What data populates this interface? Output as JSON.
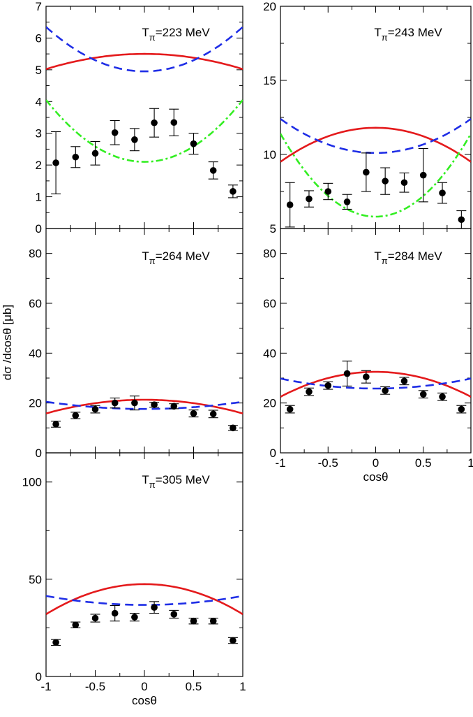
{
  "chart_data": [
    {
      "type": "line",
      "title": "223",
      "title_sub": "π",
      "title_unit": "MeV",
      "xlabel": "",
      "ylabel": "",
      "xlim": [
        -1,
        1
      ],
      "ylim": [
        0,
        7
      ],
      "yticks": [
        0,
        1,
        2,
        3,
        4,
        5,
        6,
        7
      ],
      "xticks": [],
      "points": {
        "x": [
          -0.9,
          -0.7,
          -0.5,
          -0.3,
          -0.1,
          0.1,
          0.3,
          0.5,
          0.7,
          0.9
        ],
        "y": [
          2.07,
          2.25,
          2.37,
          3.02,
          2.8,
          3.33,
          3.34,
          2.67,
          1.83,
          1.17
        ],
        "err": [
          0.98,
          0.33,
          0.37,
          0.38,
          0.35,
          0.45,
          0.42,
          0.33,
          0.27,
          0.2
        ]
      },
      "curves": [
        {
          "name": "solid",
          "color": "#e41a1c",
          "dash": "",
          "coef": [
            5.5,
            -0.48
          ]
        },
        {
          "name": "dashed",
          "color": "#1f2ee6",
          "dash": "12,7",
          "coef": [
            4.95,
            1.4
          ]
        },
        {
          "name": "dash-dot",
          "color": "#33ee22",
          "dash": "10,4,3,4",
          "coef": [
            2.1,
            1.95
          ]
        }
      ]
    },
    {
      "type": "line",
      "title": "243",
      "title_sub": "π",
      "title_unit": "MeV",
      "xlabel": "",
      "ylabel": "",
      "xlim": [
        -1,
        1
      ],
      "ylim": [
        5,
        20
      ],
      "yticks": [
        5,
        10,
        15,
        20
      ],
      "xticks": [],
      "points": {
        "x": [
          -0.9,
          -0.7,
          -0.5,
          -0.3,
          -0.1,
          0.1,
          0.3,
          0.5,
          0.7,
          0.9
        ],
        "y": [
          6.6,
          7.0,
          7.5,
          6.8,
          8.8,
          8.2,
          8.1,
          8.6,
          7.4,
          5.6
        ],
        "err": [
          1.5,
          0.55,
          0.55,
          0.5,
          1.3,
          0.9,
          0.65,
          1.8,
          0.7,
          0.6
        ]
      },
      "curves": [
        {
          "name": "solid",
          "color": "#e41a1c",
          "dash": "",
          "coef": [
            11.8,
            -2.3
          ]
        },
        {
          "name": "dashed",
          "color": "#1f2ee6",
          "dash": "12,7",
          "coef": [
            10.1,
            2.3
          ]
        },
        {
          "name": "dash-dot",
          "color": "#33ee22",
          "dash": "10,4,3,4",
          "coef": [
            5.8,
            5.6
          ]
        }
      ]
    },
    {
      "type": "line",
      "title": "264",
      "title_sub": "π",
      "title_unit": "MeV",
      "xlabel": "",
      "ylabel": "",
      "xlim": [
        -1,
        1
      ],
      "ylim": [
        0,
        90
      ],
      "yticks": [
        0,
        20,
        40,
        60,
        80
      ],
      "xticks": [],
      "points": {
        "x": [
          -0.9,
          -0.7,
          -0.5,
          -0.3,
          -0.1,
          0.1,
          0.3,
          0.5,
          0.7,
          0.9
        ],
        "y": [
          11.5,
          15.0,
          17.5,
          20.0,
          20.0,
          19.3,
          18.7,
          15.8,
          15.6,
          10.0
        ],
        "err": [
          1.2,
          1.3,
          1.5,
          2.0,
          2.8,
          1.0,
          1.0,
          1.4,
          1.5,
          1.0
        ]
      },
      "curves": [
        {
          "name": "solid",
          "color": "#e41a1c",
          "dash": "",
          "coef": [
            21.3,
            -5.5
          ]
        },
        {
          "name": "dashed",
          "color": "#1f2ee6",
          "dash": "12,7",
          "coef": [
            17.6,
            2.9
          ]
        }
      ]
    },
    {
      "type": "line",
      "title": "284",
      "title_sub": "π",
      "title_unit": "MeV",
      "xlabel": "cosθ",
      "ylabel": "",
      "xlim": [
        -1,
        1
      ],
      "ylim": [
        0,
        90
      ],
      "yticks": [
        0,
        20,
        40,
        60,
        80
      ],
      "xticks": [
        -1,
        -0.5,
        0,
        0.5,
        1
      ],
      "points": {
        "x": [
          -0.9,
          -0.7,
          -0.5,
          -0.3,
          -0.1,
          0.1,
          0.3,
          0.5,
          0.7,
          0.9
        ],
        "y": [
          17.5,
          24.5,
          27.0,
          31.8,
          30.5,
          25.0,
          28.8,
          23.5,
          22.5,
          17.5
        ],
        "err": [
          1.5,
          1.5,
          1.5,
          5.0,
          2.5,
          1.5,
          1.5,
          1.5,
          1.5,
          1.5
        ]
      },
      "curves": [
        {
          "name": "solid",
          "color": "#e41a1c",
          "dash": "",
          "coef": [
            32.5,
            -10.0
          ]
        },
        {
          "name": "dashed",
          "color": "#1f2ee6",
          "dash": "12,7",
          "coef": [
            25.8,
            4.0
          ]
        }
      ]
    },
    {
      "type": "line",
      "title": "305",
      "title_sub": "π",
      "title_unit": "MeV",
      "xlabel": "cosθ",
      "ylabel": "",
      "xlim": [
        -1,
        1
      ],
      "ylim": [
        0,
        115
      ],
      "yticks": [
        0,
        50,
        100
      ],
      "xticks": [
        -1,
        -0.5,
        0,
        0.5,
        1
      ],
      "points": {
        "x": [
          -0.9,
          -0.7,
          -0.5,
          -0.3,
          -0.1,
          0.1,
          0.3,
          0.5,
          0.7,
          0.9
        ],
        "y": [
          17.5,
          26.5,
          30.0,
          32.5,
          30.5,
          35.5,
          32.0,
          28.5,
          28.5,
          18.5
        ],
        "err": [
          1.5,
          1.5,
          2.0,
          4.0,
          2.0,
          3.0,
          2.0,
          1.5,
          1.5,
          1.5
        ]
      },
      "curves": [
        {
          "name": "solid",
          "color": "#e41a1c",
          "dash": "",
          "coef": [
            47.5,
            -15.5
          ]
        },
        {
          "name": "dashed",
          "color": "#1f2ee6",
          "dash": "12,7",
          "coef": [
            36.8,
            4.6
          ]
        }
      ]
    }
  ],
  "shared": {
    "ylabel": "dσ /dcosθ [μb]",
    "title_prefix": "T",
    "title_eq": "="
  }
}
